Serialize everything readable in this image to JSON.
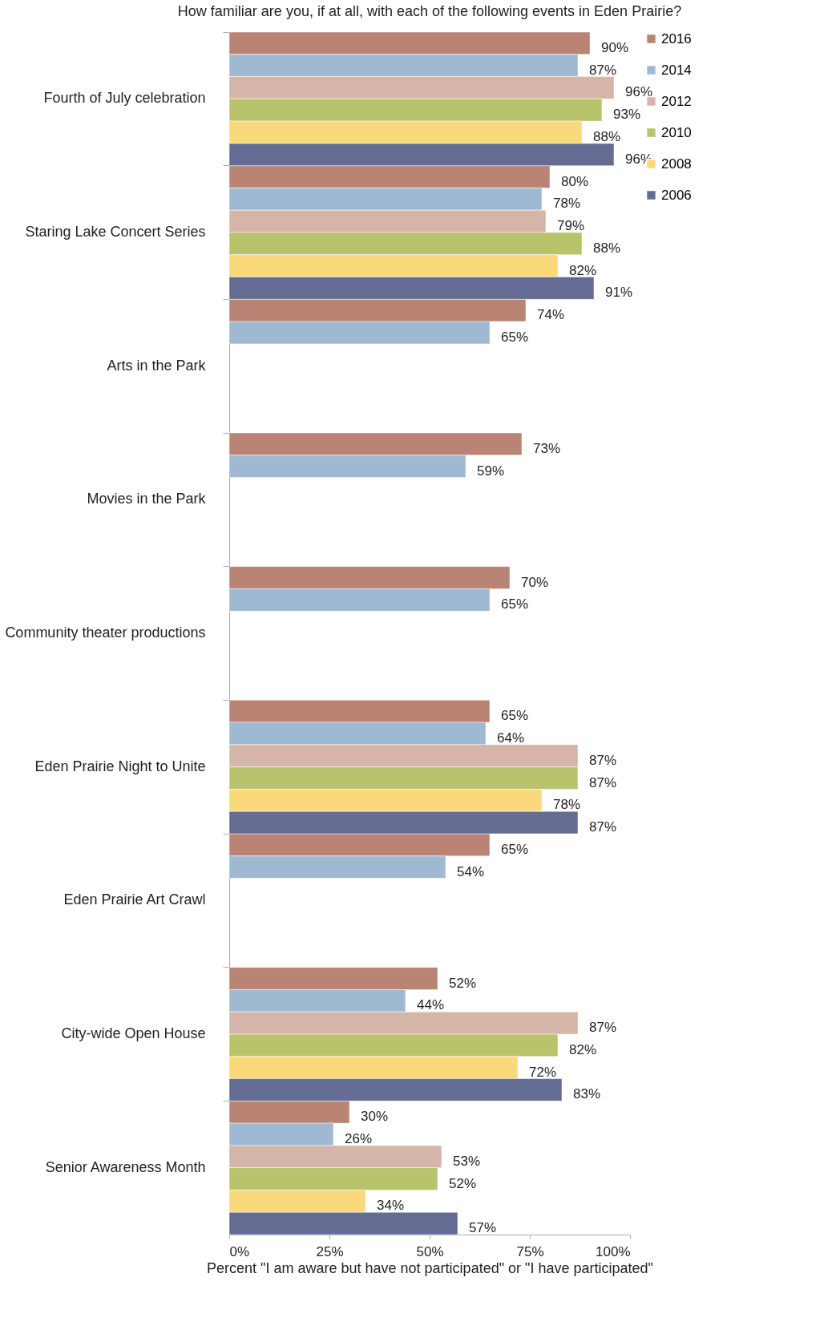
{
  "chart_data": {
    "type": "bar",
    "orientation": "horizontal",
    "title": "How familiar are you, if at all, with each of the following events in Eden Prairie?",
    "xlabel": "Percent \"I am aware but have not participated\" or \"I have participated\"",
    "categories": [
      "Fourth of July celebration",
      "Staring Lake Concert Series",
      "Arts in the Park",
      "Movies in the Park",
      "Community theater productions",
      "Eden Prairie Night to Unite",
      "Eden Prairie Art Crawl",
      "City-wide Open House",
      "Senior Awareness Month"
    ],
    "series": [
      {
        "name": "2016",
        "color": "#b98474",
        "values": [
          90,
          80,
          74,
          73,
          70,
          65,
          65,
          52,
          30
        ],
        "value_labels": [
          "90%",
          "80%",
          "74%",
          "73%",
          "70%",
          "65%",
          "65%",
          "52%",
          "30%"
        ]
      },
      {
        "name": "2014",
        "color": "#a0b9d2",
        "values": [
          87,
          78,
          65,
          59,
          65,
          64,
          54,
          44,
          26
        ],
        "value_labels": [
          "87%",
          "78%",
          "65%",
          "59%",
          "65%",
          "64%",
          "54%",
          "44%",
          "26%"
        ]
      },
      {
        "name": "2012",
        "color": "#d5b5a8",
        "values": [
          96,
          79,
          null,
          null,
          null,
          87,
          null,
          87,
          53
        ],
        "value_labels": [
          "96%",
          "79%",
          null,
          null,
          null,
          "87%",
          null,
          "87%",
          "53%"
        ]
      },
      {
        "name": "2010",
        "color": "#b9c36b",
        "values": [
          93,
          88,
          null,
          null,
          null,
          87,
          null,
          82,
          52
        ],
        "value_labels": [
          "93%",
          "88%",
          null,
          null,
          null,
          "87%",
          null,
          "82%",
          "52%"
        ]
      },
      {
        "name": "2008",
        "color": "#f9d97b",
        "values": [
          88,
          82,
          null,
          null,
          null,
          78,
          null,
          72,
          34
        ],
        "value_labels": [
          "88%",
          "82%",
          null,
          null,
          null,
          "78%",
          null,
          "72%",
          "34%"
        ]
      },
      {
        "name": "2006",
        "color": "#646c93",
        "values": [
          96,
          91,
          null,
          null,
          null,
          87,
          null,
          83,
          57
        ],
        "value_labels": [
          "96%",
          "91%",
          null,
          null,
          null,
          "87%",
          null,
          "83%",
          "57%"
        ]
      }
    ],
    "xlim": [
      0,
      100
    ],
    "xticks": [
      {
        "value": 0,
        "label": "0%"
      },
      {
        "value": 25,
        "label": "25%"
      },
      {
        "value": 50,
        "label": "50%"
      },
      {
        "value": 75,
        "label": "75%"
      },
      {
        "value": 100,
        "label": "100%"
      }
    ],
    "grid": false,
    "legend": "top right"
  }
}
